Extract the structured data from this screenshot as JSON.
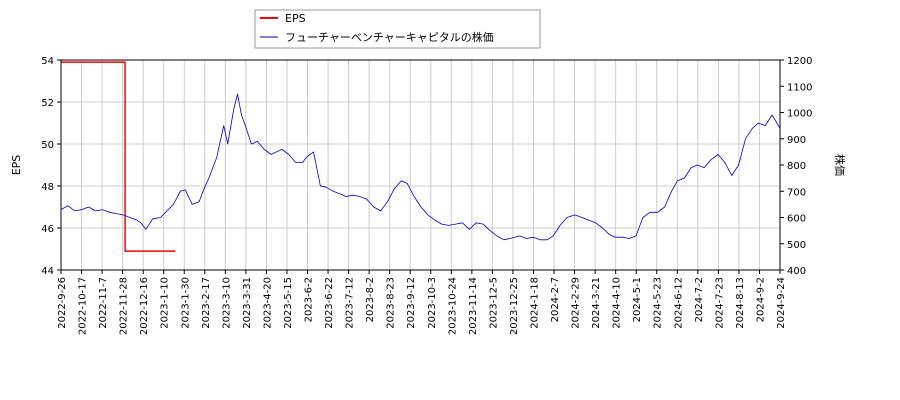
{
  "chart_data": {
    "type": "line",
    "legend": {
      "placement": "top-center",
      "entries": [
        {
          "label": "EPS",
          "color": "#ff0000"
        },
        {
          "label": "フューチャーベンチャーキャピタルの株価",
          "color": "#0000cc"
        }
      ]
    },
    "y_left": {
      "label": "EPS",
      "ylim": [
        44,
        54
      ],
      "ticks": [
        "44",
        "46",
        "48",
        "50",
        "52",
        "54"
      ]
    },
    "y_right": {
      "label": "株価",
      "ylim": [
        400,
        1200
      ],
      "ticks": [
        "400",
        "500",
        "600",
        "700",
        "800",
        "900",
        "1000",
        "1100",
        "1200"
      ]
    },
    "x_axis": {
      "range": [
        "2022-09-26",
        "2024-09-24"
      ],
      "ticks": [
        "2022-9-26",
        "2022-10-17",
        "2022-11-7",
        "2022-11-28",
        "2022-12-16",
        "2023-1-10",
        "2023-1-30",
        "2023-2-17",
        "2023-3-10",
        "2023-3-31",
        "2023-4-20",
        "2023-5-15",
        "2023-6-2",
        "2023-6-22",
        "2023-7-12",
        "2023-8-2",
        "2023-8-23",
        "2023-9-12",
        "2023-10-3",
        "2023-10-24",
        "2023-11-14",
        "2023-12-5",
        "2023-12-25",
        "2024-1-18",
        "2024-2-7",
        "2024-2-29",
        "2024-3-21",
        "2024-4-10",
        "2024-5-1",
        "2024-5-23",
        "2024-6-12",
        "2024-7-2",
        "2024-7-23",
        "2024-8-13",
        "2024-9-2",
        "2024-9-24"
      ]
    },
    "grid": true,
    "series": [
      {
        "name": "EPS",
        "axis": "left",
        "color": "#ff0000",
        "step": true,
        "points": [
          [
            "2022-09-26",
            53.9
          ],
          [
            "2022-11-29",
            53.9
          ],
          [
            "2022-11-30",
            44.9
          ],
          [
            "2023-01-20",
            44.9
          ]
        ]
      },
      {
        "name": "フューチャーベンチャーキャピタルの株価",
        "axis": "right",
        "color": "#0000cc",
        "step": false,
        "points": [
          [
            "2022-09-26",
            630
          ],
          [
            "2022-10-03",
            645
          ],
          [
            "2022-10-10",
            625
          ],
          [
            "2022-10-17",
            630
          ],
          [
            "2022-10-24",
            640
          ],
          [
            "2022-10-31",
            625
          ],
          [
            "2022-11-07",
            630
          ],
          [
            "2022-11-14",
            620
          ],
          [
            "2022-11-21",
            615
          ],
          [
            "2022-11-28",
            610
          ],
          [
            "2022-12-05",
            600
          ],
          [
            "2022-12-12",
            590
          ],
          [
            "2022-12-16",
            580
          ],
          [
            "2022-12-21",
            555
          ],
          [
            "2022-12-28",
            595
          ],
          [
            "2023-01-05",
            600
          ],
          [
            "2023-01-10",
            620
          ],
          [
            "2023-01-18",
            650
          ],
          [
            "2023-01-25",
            700
          ],
          [
            "2023-01-30",
            705
          ],
          [
            "2023-02-06",
            650
          ],
          [
            "2023-02-13",
            660
          ],
          [
            "2023-02-17",
            700
          ],
          [
            "2023-02-24",
            760
          ],
          [
            "2023-03-03",
            830
          ],
          [
            "2023-03-10",
            950
          ],
          [
            "2023-03-14",
            880
          ],
          [
            "2023-03-20",
            1010
          ],
          [
            "2023-03-24",
            1070
          ],
          [
            "2023-03-28",
            990
          ],
          [
            "2023-03-31",
            960
          ],
          [
            "2023-04-07",
            880
          ],
          [
            "2023-04-13",
            890
          ],
          [
            "2023-04-20",
            860
          ],
          [
            "2023-04-27",
            840
          ],
          [
            "2023-05-08",
            860
          ],
          [
            "2023-05-15",
            840
          ],
          [
            "2023-05-22",
            810
          ],
          [
            "2023-05-29",
            810
          ],
          [
            "2023-06-02",
            830
          ],
          [
            "2023-06-09",
            850
          ],
          [
            "2023-06-16",
            720
          ],
          [
            "2023-06-22",
            715
          ],
          [
            "2023-06-29",
            700
          ],
          [
            "2023-07-06",
            690
          ],
          [
            "2023-07-12",
            680
          ],
          [
            "2023-07-19",
            685
          ],
          [
            "2023-07-26",
            680
          ],
          [
            "2023-08-02",
            670
          ],
          [
            "2023-08-09",
            640
          ],
          [
            "2023-08-16",
            625
          ],
          [
            "2023-08-23",
            660
          ],
          [
            "2023-08-30",
            710
          ],
          [
            "2023-09-06",
            740
          ],
          [
            "2023-09-12",
            730
          ],
          [
            "2023-09-19",
            680
          ],
          [
            "2023-09-26",
            640
          ],
          [
            "2023-10-03",
            610
          ],
          [
            "2023-10-10",
            590
          ],
          [
            "2023-10-17",
            575
          ],
          [
            "2023-10-24",
            570
          ],
          [
            "2023-10-31",
            575
          ],
          [
            "2023-11-07",
            580
          ],
          [
            "2023-11-14",
            555
          ],
          [
            "2023-11-21",
            580
          ],
          [
            "2023-11-28",
            575
          ],
          [
            "2023-12-05",
            550
          ],
          [
            "2023-12-12",
            530
          ],
          [
            "2023-12-19",
            515
          ],
          [
            "2023-12-25",
            520
          ],
          [
            "2024-01-04",
            530
          ],
          [
            "2024-01-11",
            520
          ],
          [
            "2024-01-18",
            525
          ],
          [
            "2024-01-25",
            515
          ],
          [
            "2024-02-01",
            515
          ],
          [
            "2024-02-07",
            530
          ],
          [
            "2024-02-14",
            570
          ],
          [
            "2024-02-21",
            600
          ],
          [
            "2024-02-29",
            610
          ],
          [
            "2024-03-07",
            600
          ],
          [
            "2024-03-14",
            590
          ],
          [
            "2024-03-21",
            580
          ],
          [
            "2024-03-28",
            560
          ],
          [
            "2024-04-04",
            535
          ],
          [
            "2024-04-10",
            525
          ],
          [
            "2024-04-17",
            525
          ],
          [
            "2024-04-24",
            520
          ],
          [
            "2024-05-01",
            530
          ],
          [
            "2024-05-08",
            600
          ],
          [
            "2024-05-15",
            620
          ],
          [
            "2024-05-23",
            620
          ],
          [
            "2024-05-30",
            640
          ],
          [
            "2024-06-06",
            700
          ],
          [
            "2024-06-12",
            740
          ],
          [
            "2024-06-19",
            750
          ],
          [
            "2024-06-26",
            790
          ],
          [
            "2024-07-02",
            800
          ],
          [
            "2024-07-09",
            790
          ],
          [
            "2024-07-16",
            820
          ],
          [
            "2024-07-23",
            840
          ],
          [
            "2024-07-30",
            810
          ],
          [
            "2024-08-06",
            760
          ],
          [
            "2024-08-13",
            800
          ],
          [
            "2024-08-20",
            900
          ],
          [
            "2024-08-27",
            940
          ],
          [
            "2024-09-02",
            960
          ],
          [
            "2024-09-09",
            950
          ],
          [
            "2024-09-16",
            990
          ],
          [
            "2024-09-24",
            940
          ]
        ]
      }
    ]
  }
}
